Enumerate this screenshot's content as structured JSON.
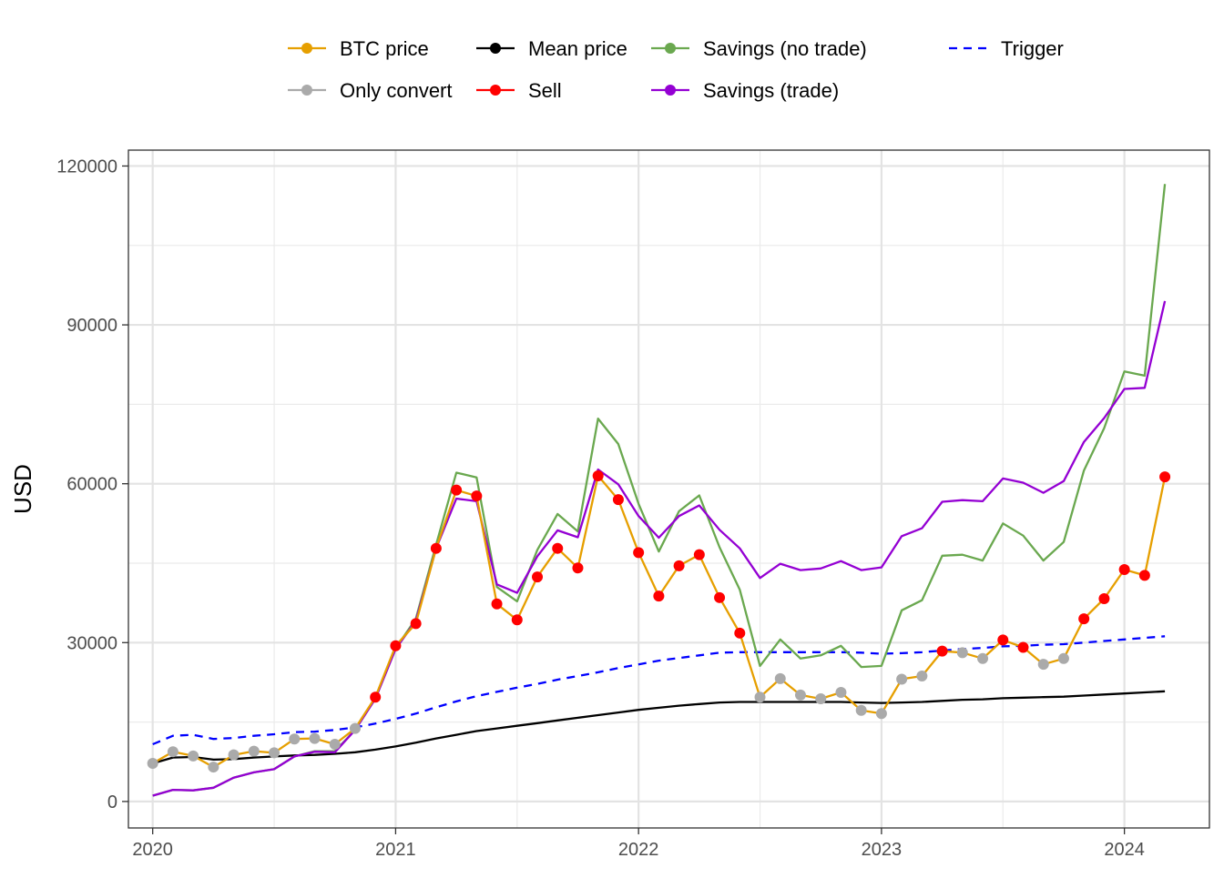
{
  "chart_data": {
    "type": "line",
    "xlabel": "",
    "ylabel": "USD",
    "xlim": [
      2019.9,
      2024.35
    ],
    "ylim": [
      -5000,
      123000
    ],
    "x_ticks": [
      2020,
      2021,
      2022,
      2023,
      2024
    ],
    "x_tick_labels": [
      "2020",
      "2021",
      "2022",
      "2023",
      "2024"
    ],
    "y_ticks": [
      0,
      30000,
      60000,
      90000,
      120000
    ],
    "y_tick_labels": [
      "0",
      "30000",
      "60000",
      "90000",
      "120000"
    ],
    "grid": true,
    "legend_position": "top",
    "legend": [
      {
        "label": "BTC price",
        "color": "#E69F00",
        "style": "line-point",
        "key": "btc"
      },
      {
        "label": "Mean price",
        "color": "#000000",
        "style": "line-point",
        "key": "mean"
      },
      {
        "label": "Savings (no trade)",
        "color": "#6AA84F",
        "style": "line-point",
        "key": "nosave"
      },
      {
        "label": "Trigger",
        "color": "#0000FF",
        "style": "dashed",
        "key": "trigger"
      },
      {
        "label": "Only convert",
        "color": "#AAAAAA",
        "style": "line-point",
        "key": "convert"
      },
      {
        "label": "Sell",
        "color": "#FF0000",
        "style": "line-point",
        "key": "sell"
      },
      {
        "label": "Savings (trade)",
        "color": "#9400D3",
        "style": "line-point",
        "key": "trade"
      }
    ],
    "x": [
      "2020-01",
      "2020-02",
      "2020-03",
      "2020-04",
      "2020-05",
      "2020-06",
      "2020-07",
      "2020-08",
      "2020-09",
      "2020-10",
      "2020-11",
      "2020-12",
      "2021-01",
      "2021-02",
      "2021-03",
      "2021-04",
      "2021-05",
      "2021-06",
      "2021-07",
      "2021-08",
      "2021-09",
      "2021-10",
      "2021-11",
      "2021-12",
      "2022-01",
      "2022-02",
      "2022-03",
      "2022-04",
      "2022-05",
      "2022-06",
      "2022-07",
      "2022-08",
      "2022-09",
      "2022-10",
      "2022-11",
      "2022-12",
      "2023-01",
      "2023-02",
      "2023-03",
      "2023-04",
      "2023-05",
      "2023-06",
      "2023-07",
      "2023-08",
      "2023-09",
      "2023-10",
      "2023-11",
      "2023-12",
      "2024-01",
      "2024-02",
      "2024-03"
    ],
    "series": [
      {
        "name": "BTC price",
        "color": "#E69F00",
        "values": [
          7200,
          9400,
          8600,
          6500,
          8800,
          9500,
          9200,
          11800,
          11900,
          10800,
          13800,
          19700,
          29400,
          33600,
          47800,
          58800,
          57700,
          37300,
          34300,
          42400,
          47800,
          44100,
          61500,
          57000,
          47000,
          38800,
          44500,
          46600,
          38500,
          31800,
          19700,
          23200,
          20100,
          19400,
          20600,
          17200,
          16600,
          23100,
          23700,
          28400,
          28100,
          27000,
          30500,
          29100,
          25900,
          27000,
          34500,
          38300,
          43800,
          42700,
          61300
        ]
      },
      {
        "name": "Mean price",
        "color": "#000000",
        "values": [
          7200,
          8300,
          8400,
          7900,
          8000,
          8300,
          8500,
          8700,
          8800,
          9000,
          9300,
          9800,
          10400,
          11100,
          11900,
          12600,
          13300,
          13800,
          14300,
          14800,
          15300,
          15800,
          16300,
          16800,
          17300,
          17700,
          18100,
          18400,
          18700,
          18800,
          18800,
          18800,
          18800,
          18800,
          18800,
          18700,
          18600,
          18700,
          18800,
          19000,
          19200,
          19300,
          19500,
          19600,
          19700,
          19800,
          20000,
          20200,
          20400,
          20600,
          20800
        ]
      },
      {
        "name": "Savings (no trade)",
        "color": "#6AA84F",
        "values": [
          1100,
          2200,
          2100,
          2600,
          4500,
          5500,
          6100,
          8500,
          9500,
          9500,
          13500,
          19500,
          28900,
          34500,
          48500,
          62100,
          61200,
          40500,
          37800,
          47500,
          54300,
          51000,
          72300,
          67500,
          56200,
          47200,
          54800,
          57800,
          48000,
          40000,
          25600,
          30600,
          27000,
          27600,
          29400,
          25400,
          25600,
          36100,
          38000,
          46400,
          46600,
          45500,
          52500,
          50200,
          45500,
          49000,
          62500,
          70500,
          81200,
          80400,
          116600
        ]
      },
      {
        "name": "Savings (trade)",
        "color": "#9400D3",
        "values": [
          1100,
          2200,
          2100,
          2600,
          4500,
          5500,
          6100,
          8500,
          9400,
          9300,
          13500,
          19400,
          28800,
          34100,
          47800,
          57200,
          56700,
          41000,
          39400,
          46300,
          51200,
          49900,
          62700,
          59900,
          53900,
          49800,
          53900,
          55900,
          51300,
          47800,
          42200,
          44900,
          43700,
          44000,
          45400,
          43700,
          44200,
          50100,
          51600,
          56600,
          56900,
          56700,
          61000,
          60200,
          58300,
          60500,
          67900,
          72400,
          77900,
          78100,
          94500
        ]
      },
      {
        "name": "Trigger",
        "color": "#0000FF",
        "dashed": true,
        "values": [
          10800,
          12400,
          12600,
          11800,
          12000,
          12400,
          12700,
          13100,
          13200,
          13500,
          14000,
          14700,
          15600,
          16600,
          17800,
          18900,
          19900,
          20700,
          21500,
          22200,
          23000,
          23700,
          24400,
          25200,
          25900,
          26600,
          27100,
          27600,
          28100,
          28200,
          28200,
          28200,
          28200,
          28200,
          28200,
          28100,
          27900,
          28000,
          28200,
          28500,
          28800,
          29000,
          29300,
          29400,
          29600,
          29700,
          30000,
          30300,
          30600,
          30900,
          31200
        ]
      }
    ],
    "point_markers": {
      "Only convert": [
        0,
        1,
        2,
        3,
        4,
        5,
        6,
        7,
        8,
        9,
        10,
        30,
        31,
        32,
        33,
        34,
        35,
        36,
        37,
        38,
        40,
        41,
        44,
        45
      ],
      "Sell": [
        11,
        12,
        13,
        14,
        15,
        16,
        17,
        18,
        19,
        20,
        21,
        22,
        23,
        24,
        25,
        26,
        27,
        28,
        29,
        39,
        42,
        43,
        46,
        47,
        48,
        49,
        50
      ]
    }
  }
}
